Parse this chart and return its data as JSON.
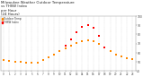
{
  "title": "Milwaukee Weather Outdoor Temperature\nvs THSW Index\nper Hour\n(24 Hours)",
  "title_fontsize": 2.8,
  "background_color": "#ffffff",
  "temp_data": {
    "x": [
      0,
      1,
      2,
      3,
      4,
      5,
      6,
      7,
      8,
      9,
      10,
      11,
      12,
      13,
      14,
      15,
      16,
      17,
      18,
      19,
      20,
      21,
      22,
      23
    ],
    "y": [
      52,
      51,
      50,
      50,
      49,
      49,
      49,
      52,
      55,
      58,
      62,
      65,
      68,
      71,
      73,
      74,
      73,
      70,
      66,
      62,
      58,
      56,
      54,
      53
    ],
    "color": "#ff8800",
    "marker": "s",
    "size": 1.5,
    "label": "Outdoor Temp"
  },
  "thsw_data": {
    "x": [
      11,
      12,
      13,
      14,
      15,
      16,
      17,
      18
    ],
    "y": [
      68,
      75,
      82,
      88,
      90,
      87,
      78,
      66
    ],
    "color": "#ff0000",
    "marker": "s",
    "size": 1.5,
    "label": "THSW Index"
  },
  "ylim": [
    40,
    100
  ],
  "xlim": [
    -0.5,
    23.5
  ],
  "yticks": [
    40,
    50,
    60,
    70,
    80,
    90,
    100
  ],
  "xticks": [
    0,
    1,
    2,
    3,
    4,
    5,
    6,
    7,
    8,
    9,
    10,
    11,
    12,
    13,
    14,
    15,
    16,
    17,
    18,
    19,
    20,
    21,
    22,
    23
  ],
  "xtick_labels": [
    "0",
    "1",
    "2",
    "3",
    "4",
    "5",
    "6",
    "7",
    "8",
    "9",
    "10",
    "11",
    "12",
    "13",
    "14",
    "15",
    "16",
    "17",
    "18",
    "19",
    "20",
    "21",
    "22",
    "23"
  ],
  "ytick_fontsize": 2.2,
  "xtick_fontsize": 2.0,
  "grid_color": "#bbbbbb",
  "grid_style": ":",
  "legend_fontsize": 2.0
}
